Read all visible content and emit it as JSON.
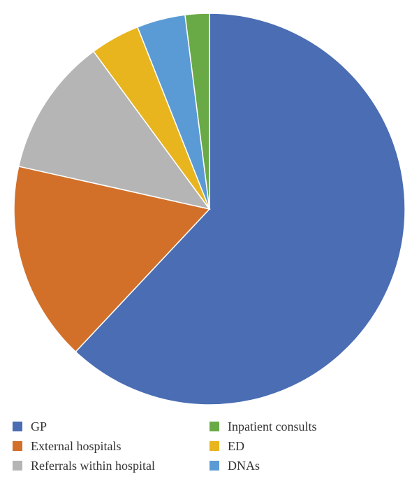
{
  "chart_data": {
    "type": "pie",
    "title": "",
    "slices": [
      {
        "label": "GP",
        "value": 62.0,
        "color": "#4A6DB3"
      },
      {
        "label": "External hospitals",
        "value": 16.5,
        "color": "#D2702A"
      },
      {
        "label": "Referrals within hospital",
        "value": 11.4,
        "color": "#B5B5B5"
      },
      {
        "label": "ED",
        "value": 4.1,
        "color": "#E8B51E"
      },
      {
        "label": "DNAs",
        "value": 4.0,
        "color": "#5B9BD5"
      },
      {
        "label": "Inpatient consults",
        "value": 2.0,
        "color": "#6AAA46"
      }
    ],
    "legend": {
      "placement": "bottom",
      "order": [
        "GP",
        "Inpatient consults",
        "External hospitals",
        "ED",
        "Referrals within hospital",
        "DNAs"
      ]
    }
  }
}
